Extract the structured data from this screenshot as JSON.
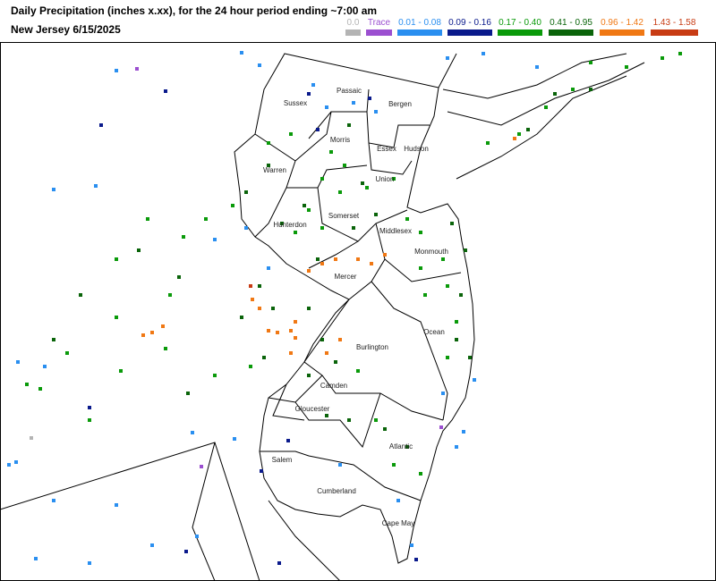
{
  "header": {
    "title": "Daily Precipitation (inches  x.xx),  for the 24 hour period ending ~7:00 am",
    "subtitle": "New Jersey 6/15/2025"
  },
  "legend": [
    {
      "label": "0.0",
      "color": "#b4b4b4"
    },
    {
      "label": "Trace",
      "color": "#9b4fd0"
    },
    {
      "label": "0.01 - 0.08",
      "color": "#2a8ff0"
    },
    {
      "label": "0.09 - 0.16",
      "color": "#0a1a8c"
    },
    {
      "label": "0.17 - 0.40",
      "color": "#0a9a0a"
    },
    {
      "label": "0.41 - 0.95",
      "color": "#0a640a"
    },
    {
      "label": "0.96 - 1.42",
      "color": "#f07814"
    },
    {
      "label": "1.43 - 1.58",
      "color": "#c83c14"
    }
  ],
  "counties": [
    "Sussex",
    "Passaic",
    "Bergen",
    "Morris",
    "Essex",
    "Hudson",
    "Warren",
    "Union",
    "Somerset",
    "Hunterdon",
    "Middlesex",
    "Monmouth",
    "Mercer",
    "Burlington",
    "Ocean",
    "Camden",
    "Gloucester",
    "Atlantic",
    "Salem",
    "Cumberland",
    "Cape May"
  ]
}
